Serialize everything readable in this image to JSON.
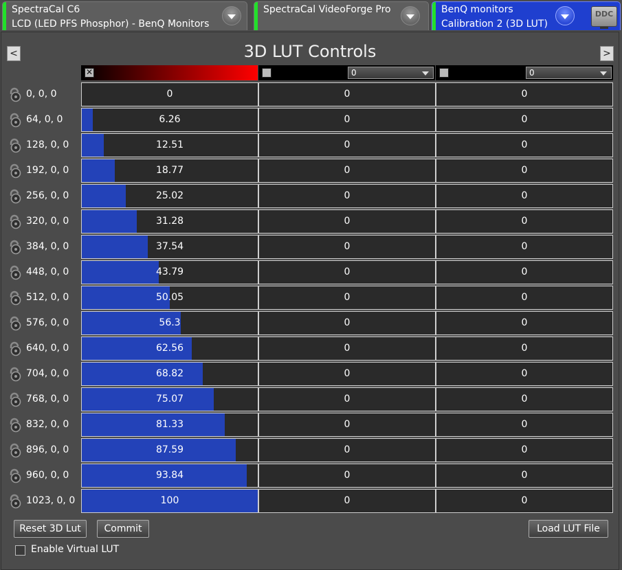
{
  "tabs": [
    {
      "line1": "SpectraCal C6",
      "line2": "LCD (LED PFS Phosphor) - BenQ Monitors",
      "active": false
    },
    {
      "line1": "SpectraCal VideoForge Pro",
      "line2": "",
      "active": false
    },
    {
      "line1": "BenQ monitors",
      "line2": "Calibration 2 (3D LUT)",
      "active": true
    }
  ],
  "ddc_label": "DDC",
  "panel": {
    "title": "3D LUT Controls",
    "prev_label": "<",
    "next_label": ">"
  },
  "channels": [
    {
      "checked": true,
      "mark": "✕",
      "gradient_color": "#ff0000"
    },
    {
      "checked": false,
      "select_value": "0"
    },
    {
      "checked": false,
      "select_value": "0"
    }
  ],
  "rows": [
    {
      "label": "0, 0, 0",
      "fill": 0,
      "values": [
        "0",
        "0",
        "0"
      ]
    },
    {
      "label": "64, 0, 0",
      "fill": 6.26,
      "values": [
        "6.26",
        "0",
        "0"
      ]
    },
    {
      "label": "128, 0, 0",
      "fill": 12.51,
      "values": [
        "12.51",
        "0",
        "0"
      ]
    },
    {
      "label": "192, 0, 0",
      "fill": 18.77,
      "values": [
        "18.77",
        "0",
        "0"
      ]
    },
    {
      "label": "256, 0, 0",
      "fill": 25.02,
      "values": [
        "25.02",
        "0",
        "0"
      ]
    },
    {
      "label": "320, 0, 0",
      "fill": 31.28,
      "values": [
        "31.28",
        "0",
        "0"
      ]
    },
    {
      "label": "384, 0, 0",
      "fill": 37.54,
      "values": [
        "37.54",
        "0",
        "0"
      ]
    },
    {
      "label": "448, 0, 0",
      "fill": 43.79,
      "values": [
        "43.79",
        "0",
        "0"
      ]
    },
    {
      "label": "512, 0, 0",
      "fill": 50.05,
      "values": [
        "50.05",
        "0",
        "0"
      ]
    },
    {
      "label": "576, 0, 0",
      "fill": 56.3,
      "values": [
        "56.3",
        "0",
        "0"
      ]
    },
    {
      "label": "640, 0, 0",
      "fill": 62.56,
      "values": [
        "62.56",
        "0",
        "0"
      ]
    },
    {
      "label": "704, 0, 0",
      "fill": 68.82,
      "values": [
        "68.82",
        "0",
        "0"
      ]
    },
    {
      "label": "768, 0, 0",
      "fill": 75.07,
      "values": [
        "75.07",
        "0",
        "0"
      ]
    },
    {
      "label": "832, 0, 0",
      "fill": 81.33,
      "values": [
        "81.33",
        "0",
        "0"
      ]
    },
    {
      "label": "896, 0, 0",
      "fill": 87.59,
      "values": [
        "87.59",
        "0",
        "0"
      ]
    },
    {
      "label": "960, 0, 0",
      "fill": 93.84,
      "values": [
        "93.84",
        "0",
        "0"
      ]
    },
    {
      "label": "1023, 0, 0",
      "fill": 100,
      "values": [
        "100",
        "0",
        "0"
      ]
    }
  ],
  "buttons": {
    "reset": "Reset 3D Lut",
    "commit": "Commit",
    "load": "Load LUT File"
  },
  "virtual_lut": {
    "label": "Enable Virtual LUT",
    "checked": false
  },
  "colors": {
    "fill_blue": "#2342b8",
    "active_tab": "#1f3fcf",
    "status_green": "#22e02a"
  }
}
